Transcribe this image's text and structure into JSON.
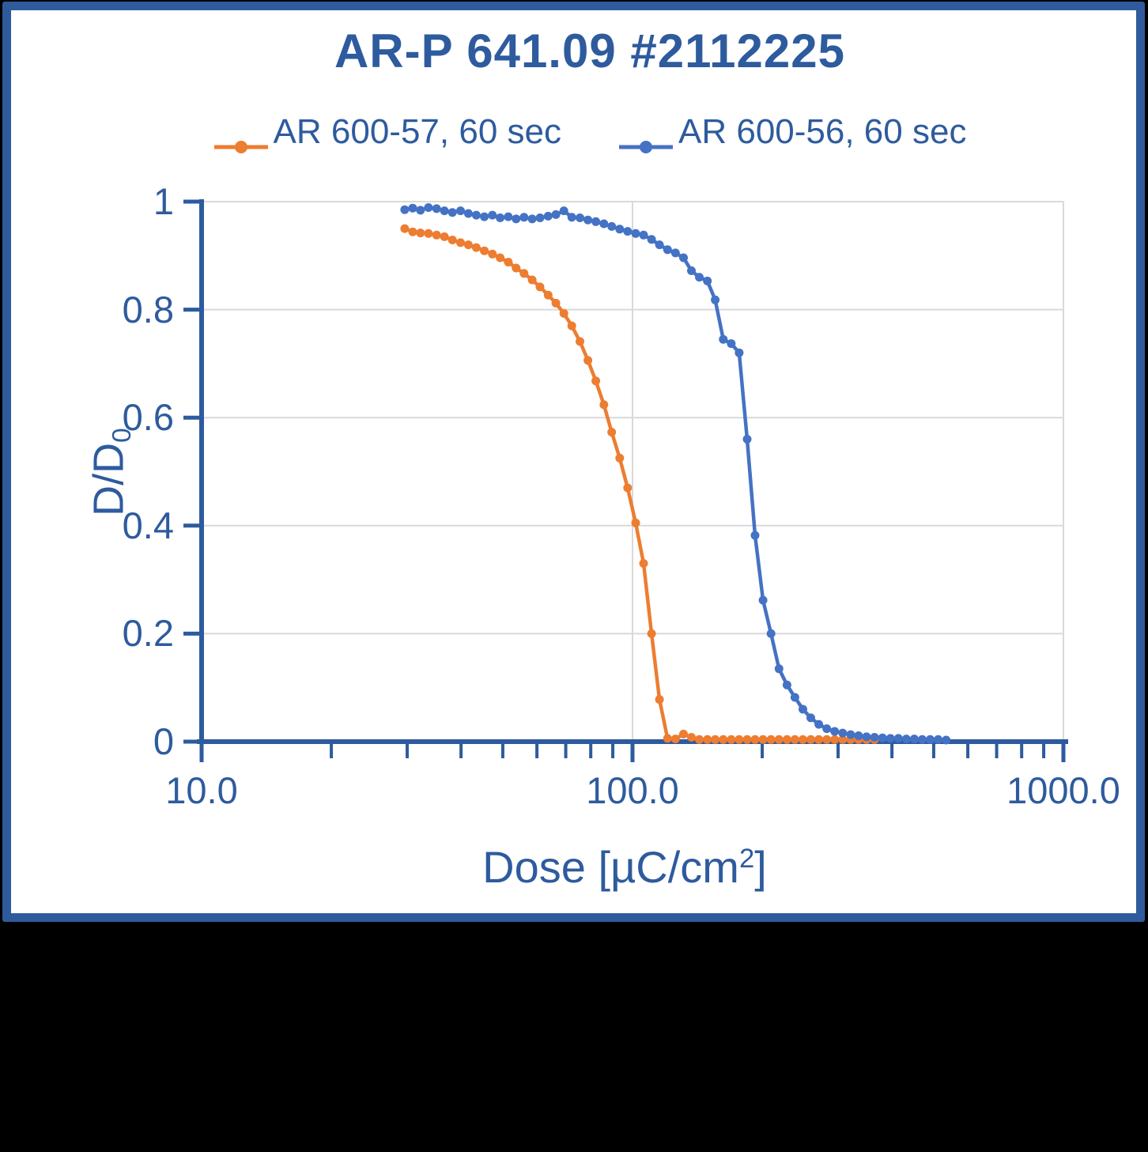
{
  "title": "AR-P 641.09 #2112225",
  "colors": {
    "page_background": "#000000",
    "chart_background": "#FFFFFF",
    "frame_border": "#2F5B9C",
    "text": "#2E5B9E",
    "axis": "#2E5B9E",
    "grid": "#D9D9D9",
    "series_orange": "#ED7D31",
    "series_blue": "#4472C4"
  },
  "legend": [
    {
      "label": "AR 600-57, 60 sec",
      "color": "#ED7D31",
      "marker": "circle-on-line"
    },
    {
      "label": "AR 600-56, 60 sec",
      "color": "#4472C4",
      "marker": "circle-on-line"
    }
  ],
  "chart_data": {
    "type": "line",
    "x_scale": "log",
    "title": "AR-P 641.09 #2112225",
    "xlabel": "Dose [µC/cm2]",
    "ylabel": "D/D0",
    "xlabel_parts": {
      "pre": "Dose [µC/cm",
      "sup": "2",
      "post": "]"
    },
    "ylabel_parts": {
      "pre": "D/D",
      "sub": "0"
    },
    "xlim": [
      10,
      1000
    ],
    "ylim": [
      0,
      1
    ],
    "x_ticks": [
      10,
      100,
      1000
    ],
    "x_tick_labels": [
      "10.0",
      "100.0",
      "1000.0"
    ],
    "x_minor_ticks": [
      20,
      30,
      40,
      50,
      60,
      70,
      80,
      90,
      200,
      300,
      400,
      500,
      600,
      700,
      800,
      900
    ],
    "x_gridlines": [
      100,
      1000
    ],
    "y_ticks": [
      0,
      0.2,
      0.4,
      0.6,
      0.8,
      1
    ],
    "y_tick_labels": [
      "0",
      "0.2",
      "0.4",
      "0.6",
      "0.8",
      "1"
    ],
    "grid": true,
    "legend_position": "top",
    "marker": "circle",
    "series": [
      {
        "name": "AR 600-57, 60 sec",
        "color": "#ED7D31",
        "points": [
          [
            29.6,
            0.95
          ],
          [
            30.9,
            0.944
          ],
          [
            32.2,
            0.942
          ],
          [
            33.6,
            0.941
          ],
          [
            35.1,
            0.938
          ],
          [
            36.6,
            0.935
          ],
          [
            38.2,
            0.929
          ],
          [
            39.9,
            0.924
          ],
          [
            41.6,
            0.92
          ],
          [
            43.4,
            0.915
          ],
          [
            45.3,
            0.909
          ],
          [
            47.3,
            0.903
          ],
          [
            49.3,
            0.896
          ],
          [
            51.5,
            0.888
          ],
          [
            53.7,
            0.877
          ],
          [
            56.0,
            0.867
          ],
          [
            58.5,
            0.855
          ],
          [
            61.0,
            0.842
          ],
          [
            63.7,
            0.827
          ],
          [
            66.4,
            0.812
          ],
          [
            69.3,
            0.793
          ],
          [
            72.3,
            0.77
          ],
          [
            75.5,
            0.741
          ],
          [
            78.8,
            0.706
          ],
          [
            82.2,
            0.668
          ],
          [
            85.8,
            0.624
          ],
          [
            89.5,
            0.573
          ],
          [
            93.4,
            0.525
          ],
          [
            97.4,
            0.47
          ],
          [
            101.7,
            0.405
          ],
          [
            106.1,
            0.33
          ],
          [
            110.7,
            0.2
          ],
          [
            115.5,
            0.078
          ],
          [
            120.6,
            0.006
          ],
          [
            125.8,
            0.005
          ],
          [
            131.3,
            0.014
          ],
          [
            137.0,
            0.008
          ],
          [
            142.9,
            0.004
          ],
          [
            149.2,
            0.004
          ],
          [
            155.6,
            0.004
          ],
          [
            162.4,
            0.004
          ],
          [
            169.5,
            0.004
          ],
          [
            176.8,
            0.004
          ],
          [
            184.5,
            0.004
          ],
          [
            192.5,
            0.004
          ],
          [
            200.9,
            0.004
          ],
          [
            209.6,
            0.004
          ],
          [
            218.8,
            0.004
          ],
          [
            228.3,
            0.004
          ],
          [
            238.2,
            0.004
          ],
          [
            248.5,
            0.004
          ],
          [
            259.3,
            0.004
          ],
          [
            270.6,
            0.004
          ],
          [
            282.4,
            0.004
          ],
          [
            294.6,
            0.004
          ],
          [
            307.4,
            0.004
          ],
          [
            320.8,
            0.004
          ],
          [
            334.7,
            0.004
          ],
          [
            349.3,
            0.004
          ],
          [
            364.4,
            0.004
          ]
        ]
      },
      {
        "name": "AR 600-56, 60 sec",
        "color": "#4472C4",
        "points": [
          [
            29.6,
            0.985
          ],
          [
            30.9,
            0.988
          ],
          [
            32.2,
            0.984
          ],
          [
            33.6,
            0.989
          ],
          [
            35.1,
            0.987
          ],
          [
            36.6,
            0.983
          ],
          [
            38.2,
            0.98
          ],
          [
            39.9,
            0.983
          ],
          [
            41.6,
            0.978
          ],
          [
            43.4,
            0.975
          ],
          [
            45.3,
            0.972
          ],
          [
            47.3,
            0.975
          ],
          [
            49.3,
            0.97
          ],
          [
            51.5,
            0.972
          ],
          [
            53.7,
            0.968
          ],
          [
            56.0,
            0.971
          ],
          [
            58.5,
            0.968
          ],
          [
            61.0,
            0.97
          ],
          [
            63.7,
            0.973
          ],
          [
            66.4,
            0.976
          ],
          [
            69.3,
            0.983
          ],
          [
            72.3,
            0.971
          ],
          [
            75.5,
            0.97
          ],
          [
            78.8,
            0.966
          ],
          [
            82.2,
            0.963
          ],
          [
            85.8,
            0.959
          ],
          [
            89.5,
            0.954
          ],
          [
            93.4,
            0.949
          ],
          [
            97.4,
            0.945
          ],
          [
            101.7,
            0.941
          ],
          [
            106.1,
            0.938
          ],
          [
            110.7,
            0.93
          ],
          [
            115.5,
            0.92
          ],
          [
            120.6,
            0.911
          ],
          [
            125.8,
            0.905
          ],
          [
            131.3,
            0.896
          ],
          [
            137.0,
            0.872
          ],
          [
            142.9,
            0.86
          ],
          [
            149.2,
            0.853
          ],
          [
            155.6,
            0.818
          ],
          [
            162.4,
            0.745
          ],
          [
            169.5,
            0.737
          ],
          [
            176.8,
            0.72
          ],
          [
            184.5,
            0.56
          ],
          [
            192.5,
            0.382
          ],
          [
            200.9,
            0.262
          ],
          [
            209.6,
            0.2
          ],
          [
            218.8,
            0.135
          ],
          [
            228.3,
            0.105
          ],
          [
            238.2,
            0.082
          ],
          [
            248.5,
            0.06
          ],
          [
            259.3,
            0.044
          ],
          [
            270.6,
            0.032
          ],
          [
            282.4,
            0.024
          ],
          [
            294.6,
            0.019
          ],
          [
            307.4,
            0.016
          ],
          [
            320.8,
            0.013
          ],
          [
            334.7,
            0.011
          ],
          [
            349.3,
            0.009
          ],
          [
            364.4,
            0.008
          ],
          [
            380.3,
            0.007
          ],
          [
            396.8,
            0.006
          ],
          [
            414.0,
            0.006
          ],
          [
            432.0,
            0.005
          ],
          [
            450.8,
            0.005
          ],
          [
            470.4,
            0.004
          ],
          [
            490.8,
            0.004
          ],
          [
            512.1,
            0.004
          ],
          [
            534.4,
            0.003
          ]
        ]
      }
    ]
  }
}
